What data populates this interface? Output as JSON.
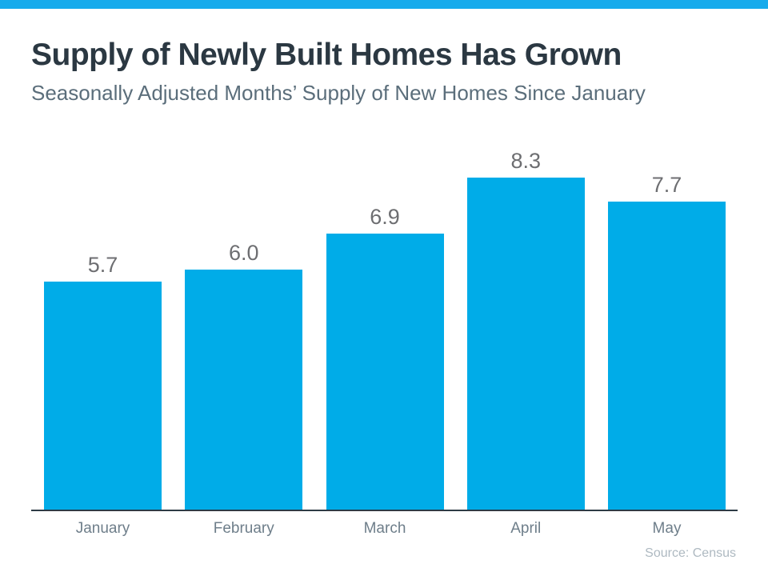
{
  "page": {
    "background_color": "#ffffff",
    "top_strip_color": "#17abec"
  },
  "header": {
    "title": "Supply of Newly Built Homes Has Grown",
    "subtitle": "Seasonally Adjusted Months’ Supply of New Homes Since January"
  },
  "chart_data": {
    "type": "bar",
    "title": "Supply of Newly Built Homes Has Grown",
    "subtitle": "Seasonally Adjusted Months’ Supply of New Homes Since January",
    "categories": [
      "January",
      "February",
      "March",
      "April",
      "May"
    ],
    "values": [
      5.7,
      6.0,
      6.9,
      8.3,
      7.7
    ],
    "data_labels": [
      "5.7",
      "6.0",
      "6.9",
      "8.3",
      "7.7"
    ],
    "xlabel": "",
    "ylabel": "",
    "ylim": [
      0,
      9
    ],
    "grid": false,
    "legend": "none",
    "bar_color": "#00ace8",
    "value_label_color": "#6d6e71",
    "category_label_color": "#6e7e8a",
    "axis_line_color": "#2e3b45"
  },
  "footer": {
    "source": "Source: Census"
  }
}
